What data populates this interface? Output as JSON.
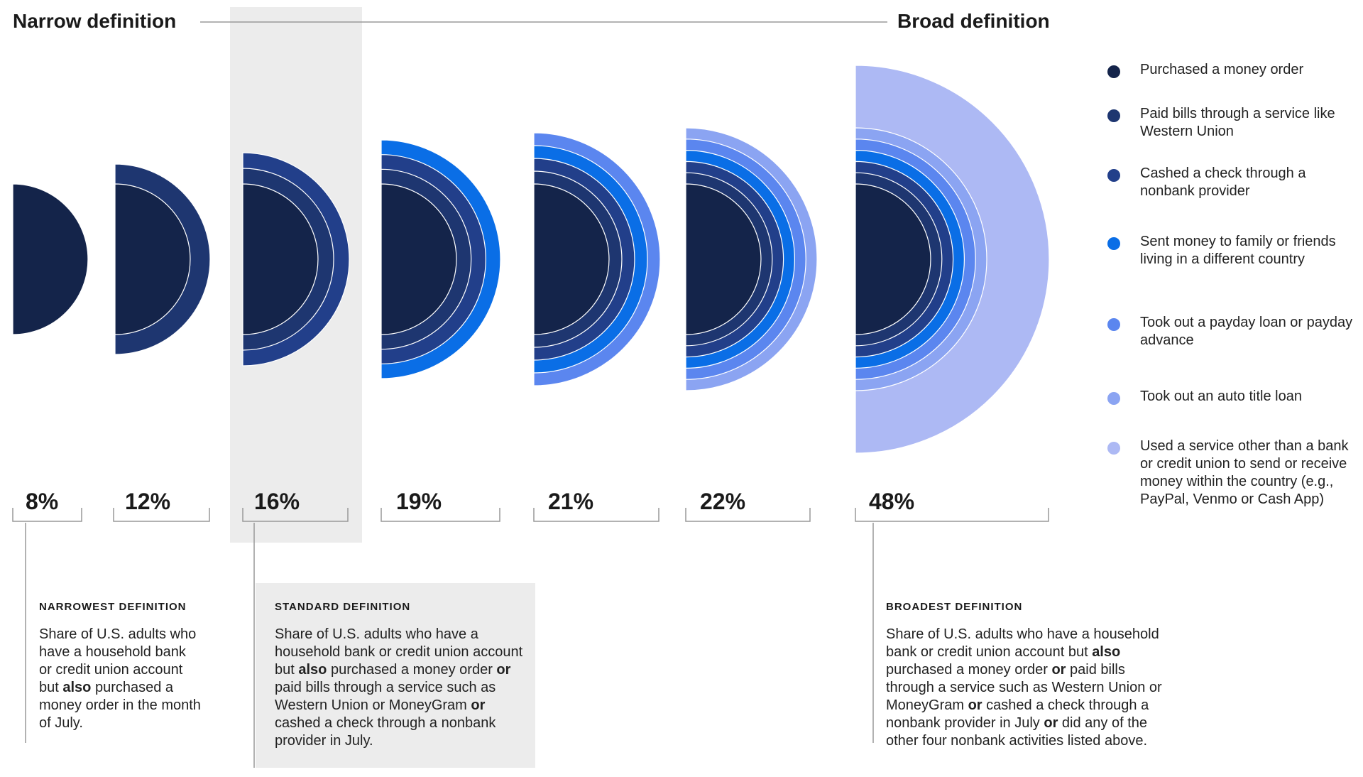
{
  "header": {
    "narrow_label": "Narrow definition",
    "broad_label": "Broad definition"
  },
  "chart_data": {
    "type": "nested-semicircle",
    "title": "",
    "categories": [
      "8%",
      "12%",
      "16%",
      "19%",
      "21%",
      "22%",
      "48%"
    ],
    "values": [
      8,
      12,
      16,
      19,
      21,
      22,
      48
    ],
    "ring_counts": [
      1,
      2,
      3,
      4,
      5,
      6,
      7
    ],
    "highlighted_category": "16%",
    "series": [
      {
        "name": "Purchased a money order",
        "color": "#14244a"
      },
      {
        "name": "Paid bills through a service like Western Union",
        "color": "#1e3670"
      },
      {
        "name": "Cashed a check through a nonbank provider",
        "color": "#223f8a"
      },
      {
        "name": "Sent money to family or friends living in a different country",
        "color": "#0a6ee6"
      },
      {
        "name": "Took out a payday loan or payday advance",
        "color": "#5b86ef"
      },
      {
        "name": "Took out an auto title loan",
        "color": "#8ba4f2"
      },
      {
        "name": "Used a service other than a bank or credit union to send or receive money within the country (e.g., PayPal, Venmo or Cash App)",
        "color": "#adb9f4"
      }
    ]
  },
  "notes": [
    {
      "title": "NARROWEST DEFINITION",
      "segments": [
        {
          "text": "Share of U.S. adults who have a household bank or credit union account but ",
          "bold": false
        },
        {
          "text": "also",
          "bold": true
        },
        {
          "text": " purchased a money order in the month of July.",
          "bold": false
        }
      ]
    },
    {
      "title": "STANDARD DEFINITION",
      "segments": [
        {
          "text": "Share of U.S. adults who have a household bank or credit union account but ",
          "bold": false
        },
        {
          "text": "also",
          "bold": true
        },
        {
          "text": " purchased a money order ",
          "bold": false
        },
        {
          "text": "or",
          "bold": true
        },
        {
          "text": " paid bills through a service such as Western Union or MoneyGram ",
          "bold": false
        },
        {
          "text": "or",
          "bold": true
        },
        {
          "text": " cashed a check through a nonbank provider in July.",
          "bold": false
        }
      ]
    },
    {
      "title": "BROADEST DEFINITION",
      "segments": [
        {
          "text": "Share of U.S. adults who have a household bank or credit union account but ",
          "bold": false
        },
        {
          "text": "also",
          "bold": true
        },
        {
          "text": " purchased a money order ",
          "bold": false
        },
        {
          "text": "or",
          "bold": true
        },
        {
          "text": " paid bills through a service such as Western Union or MoneyGram ",
          "bold": false
        },
        {
          "text": "or",
          "bold": true
        },
        {
          "text": " cashed a check through a nonbank provider in July ",
          "bold": false
        },
        {
          "text": "or",
          "bold": true
        },
        {
          "text": " did any of the other four nonbank activities listed above.",
          "bold": false
        }
      ]
    }
  ]
}
